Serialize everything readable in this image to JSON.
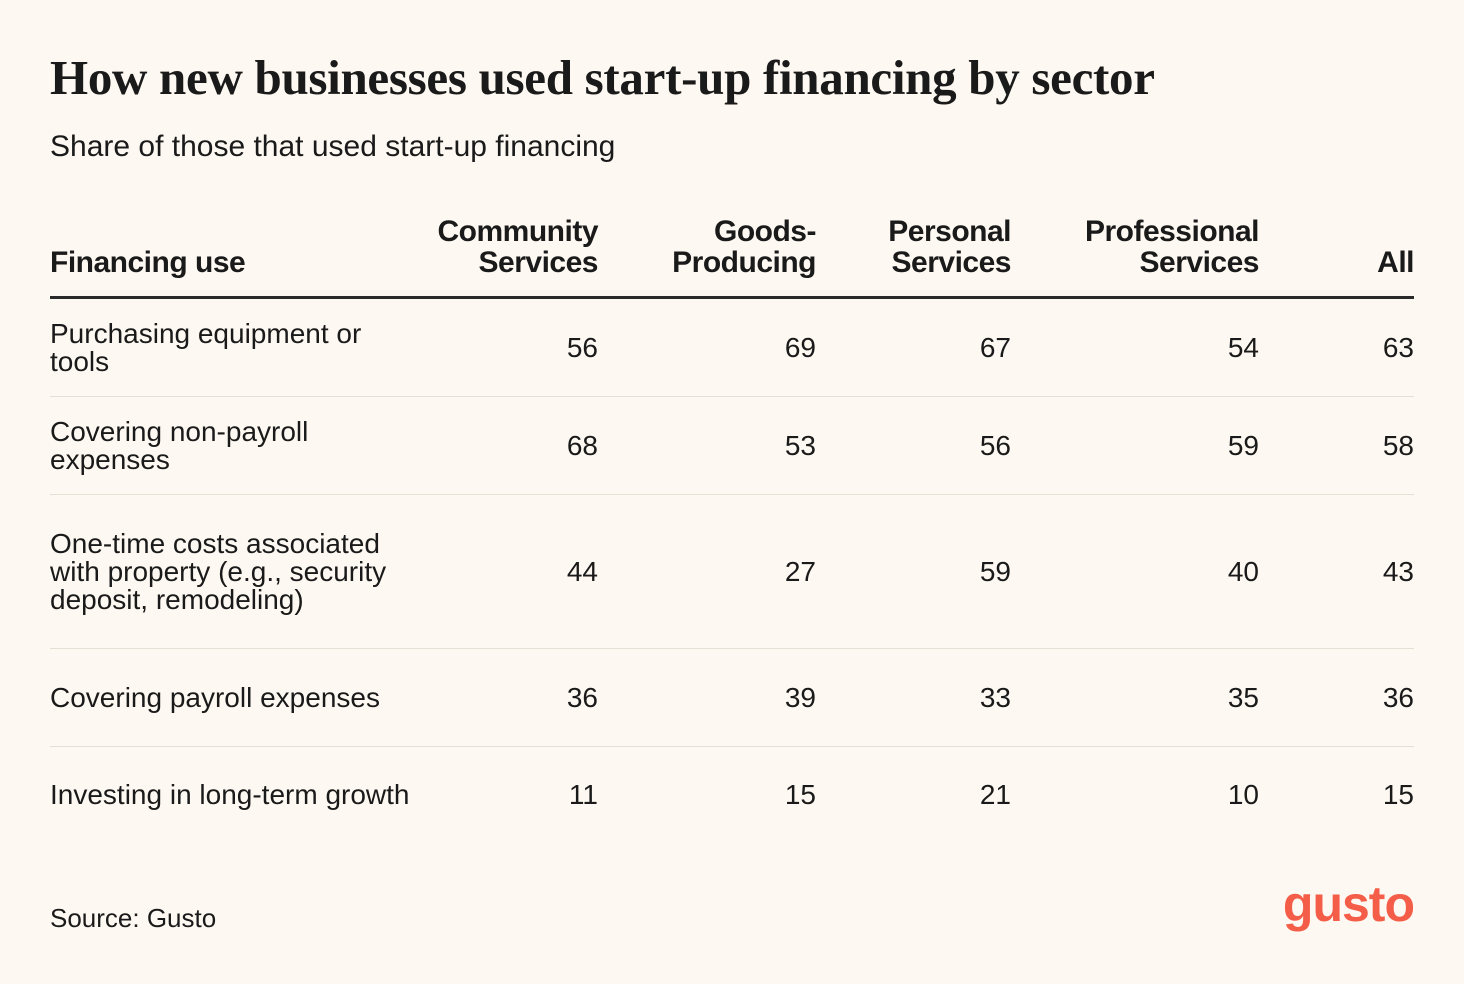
{
  "chart_data": {
    "type": "table",
    "title": "How new businesses used start-up financing by sector",
    "subtitle": "Share of those that used start-up financing",
    "columns": [
      "Financing use",
      "Community Services",
      "Goods-Producing",
      "Personal Services",
      "Professional Services",
      "All"
    ],
    "rows": [
      {
        "label": "Purchasing equipment or tools",
        "values": [
          56,
          69,
          67,
          54,
          63
        ]
      },
      {
        "label": "Covering non-payroll expenses",
        "values": [
          68,
          53,
          56,
          59,
          58
        ]
      },
      {
        "label": "One-time costs associated with property (e.g., security deposit, remodeling)",
        "values": [
          44,
          27,
          59,
          40,
          43
        ]
      },
      {
        "label": "Covering payroll expenses",
        "values": [
          36,
          39,
          33,
          35,
          36
        ]
      },
      {
        "label": "Investing in long-term growth",
        "values": [
          11,
          15,
          21,
          10,
          15
        ]
      }
    ]
  },
  "source": "Source: Gusto",
  "logo": {
    "text": "gusto",
    "color": "#f45d48"
  }
}
